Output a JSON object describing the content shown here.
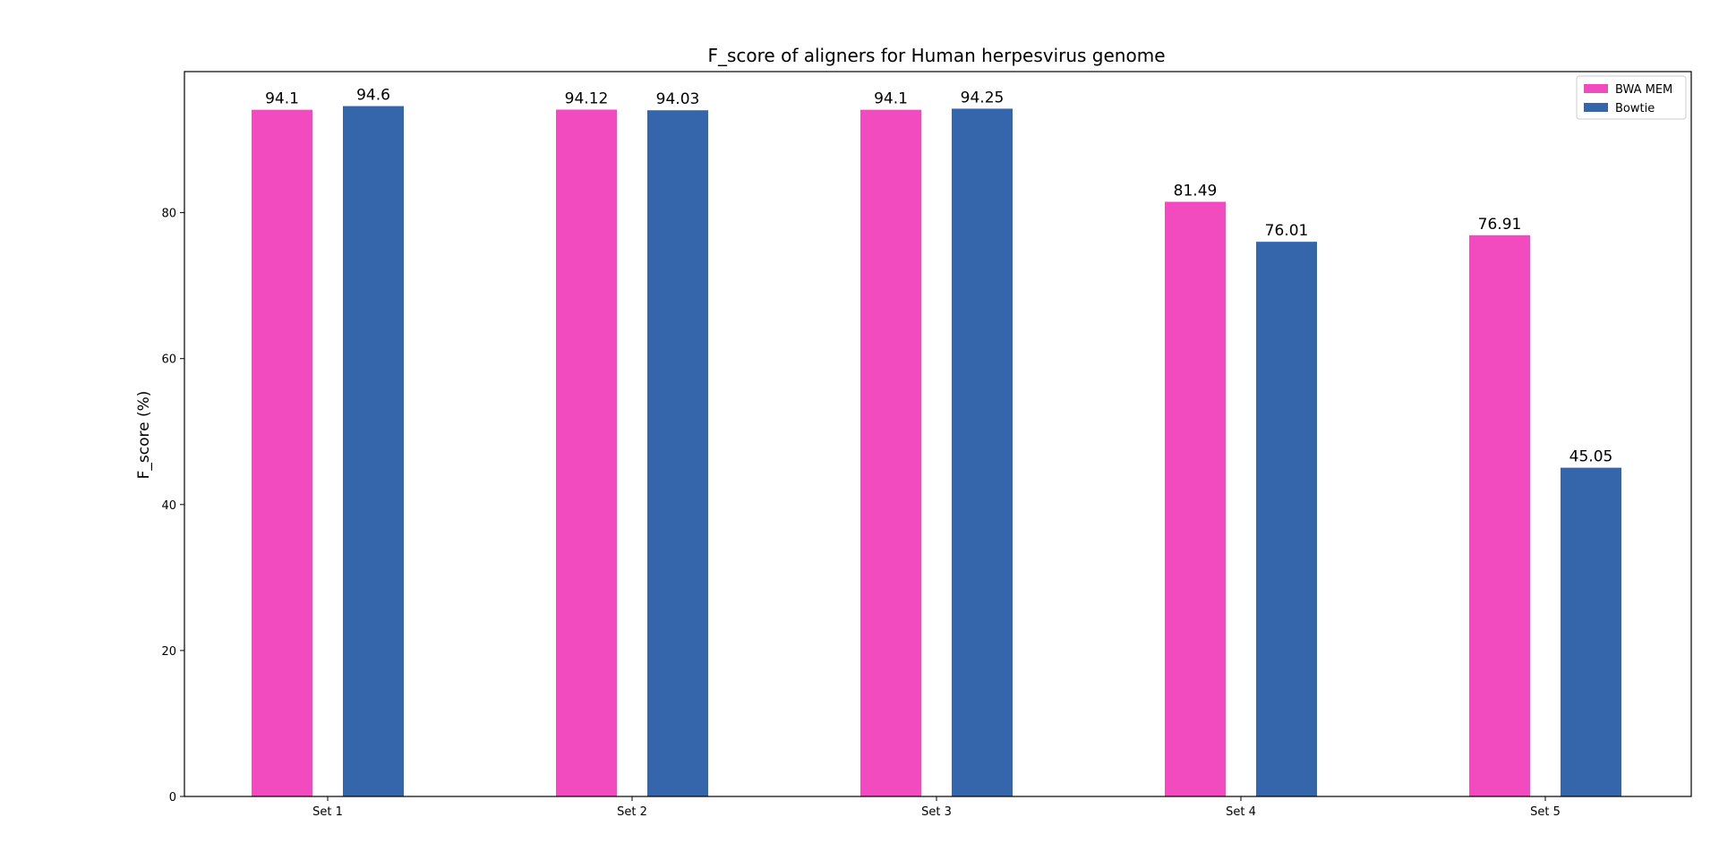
{
  "chart_data": {
    "type": "bar",
    "title": "F_score of aligners for Human herpesvirus genome",
    "xlabel": "",
    "ylabel": "F_score (%)",
    "categories": [
      "Set 1",
      "Set 2",
      "Set 3",
      "Set 4",
      "Set 5"
    ],
    "series": [
      {
        "name": "BWA MEM",
        "color": "#f24bc0",
        "values": [
          94.1,
          94.12,
          94.1,
          81.49,
          76.91
        ]
      },
      {
        "name": "Bowtie",
        "color": "#3566ab",
        "values": [
          94.6,
          94.03,
          94.25,
          76.01,
          45.05
        ]
      }
    ],
    "data_labels": [
      [
        "94.1",
        "94.12",
        "94.1",
        "81.49",
        "76.91"
      ],
      [
        "94.6",
        "94.03",
        "94.25",
        "76.01",
        "45.05"
      ]
    ],
    "ylim": [
      0,
      99.33
    ],
    "yticks": [
      "0",
      "20",
      "40",
      "60",
      "80"
    ],
    "grid": false,
    "legend": {
      "position": "top-right"
    }
  }
}
